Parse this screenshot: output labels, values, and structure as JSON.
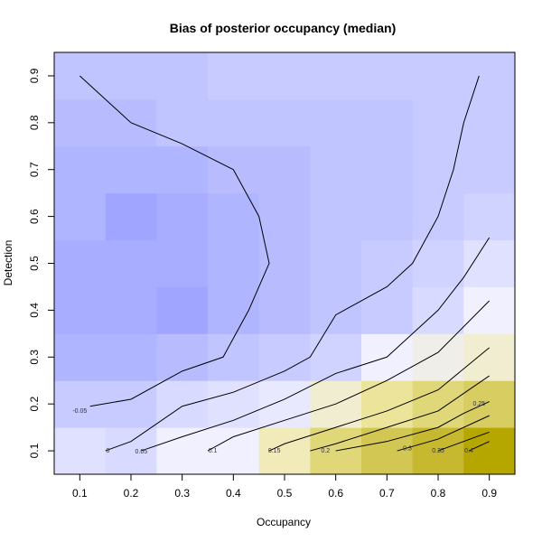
{
  "chart_data": {
    "type": "heatmap",
    "title": "Bias of posterior occupancy (median)",
    "xlabel": "Occupancy",
    "ylabel": "Detection",
    "x": [
      0.1,
      0.2,
      0.3,
      0.4,
      0.5,
      0.6,
      0.7,
      0.8,
      0.9
    ],
    "y": [
      0.1,
      0.2,
      0.3,
      0.4,
      0.5,
      0.6,
      0.7,
      0.8,
      0.9
    ],
    "xlim": [
      0.05,
      0.95
    ],
    "ylim": [
      0.05,
      0.95
    ],
    "xticks": [
      "0.1",
      "0.2",
      "0.3",
      "0.4",
      "0.5",
      "0.6",
      "0.7",
      "0.8",
      "0.9"
    ],
    "yticks": [
      "0.1",
      "0.2",
      "0.3",
      "0.4",
      "0.5",
      "0.6",
      "0.7",
      "0.8",
      "0.9"
    ],
    "z": [
      [
        -0.02,
        -0.03,
        0.0,
        0.0,
        0.12,
        0.25,
        0.33,
        0.4,
        0.52
      ],
      [
        -0.05,
        -0.05,
        -0.03,
        -0.02,
        -0.01,
        0.08,
        0.18,
        0.25,
        0.3
      ],
      [
        -0.08,
        -0.08,
        -0.07,
        -0.06,
        -0.05,
        -0.04,
        0.0,
        0.04,
        0.08
      ],
      [
        -0.09,
        -0.09,
        -0.1,
        -0.08,
        -0.07,
        -0.06,
        -0.05,
        -0.03,
        0.0
      ],
      [
        -0.09,
        -0.09,
        -0.09,
        -0.08,
        -0.07,
        -0.06,
        -0.05,
        -0.04,
        -0.02
      ],
      [
        -0.08,
        -0.1,
        -0.09,
        -0.08,
        -0.07,
        -0.06,
        -0.06,
        -0.05,
        -0.04
      ],
      [
        -0.08,
        -0.08,
        -0.08,
        -0.07,
        -0.07,
        -0.06,
        -0.06,
        -0.05,
        -0.05
      ],
      [
        -0.07,
        -0.07,
        -0.06,
        -0.06,
        -0.06,
        -0.06,
        -0.06,
        -0.05,
        -0.05
      ],
      [
        -0.06,
        -0.06,
        -0.06,
        -0.05,
        -0.05,
        -0.05,
        -0.05,
        -0.05,
        -0.05
      ]
    ],
    "color_low": "#a0a6ff",
    "color_mid": "#f0f0ff",
    "color_high_mid": "#f0eaa8",
    "color_high": "#b5a600",
    "contours": [
      {
        "label": "-0.05",
        "points": [
          [
            0.1,
            0.9
          ],
          [
            0.2,
            0.8
          ],
          [
            0.3,
            0.755
          ],
          [
            0.4,
            0.7
          ],
          [
            0.45,
            0.6
          ],
          [
            0.47,
            0.5
          ],
          [
            0.43,
            0.4
          ],
          [
            0.38,
            0.3
          ],
          [
            0.3,
            0.27
          ],
          [
            0.2,
            0.21
          ],
          [
            0.12,
            0.195
          ]
        ],
        "label_at": [
          0.1,
          0.185
        ]
      },
      {
        "label": "0",
        "points": [
          [
            0.15,
            0.1
          ],
          [
            0.2,
            0.12
          ],
          [
            0.3,
            0.195
          ],
          [
            0.4,
            0.225
          ],
          [
            0.5,
            0.27
          ],
          [
            0.55,
            0.3
          ],
          [
            0.6,
            0.39
          ],
          [
            0.7,
            0.45
          ],
          [
            0.75,
            0.5
          ],
          [
            0.8,
            0.6
          ],
          [
            0.83,
            0.7
          ],
          [
            0.85,
            0.8
          ],
          [
            0.88,
            0.9
          ]
        ],
        "label_at": [
          0.155,
          0.1
        ]
      },
      {
        "label": "0.05",
        "points": [
          [
            0.22,
            0.1
          ],
          [
            0.3,
            0.13
          ],
          [
            0.4,
            0.165
          ],
          [
            0.5,
            0.21
          ],
          [
            0.6,
            0.265
          ],
          [
            0.7,
            0.3
          ],
          [
            0.8,
            0.4
          ],
          [
            0.85,
            0.47
          ],
          [
            0.9,
            0.555
          ]
        ],
        "label_at": [
          0.22,
          0.098
        ]
      },
      {
        "label": "0.1",
        "points": [
          [
            0.35,
            0.1
          ],
          [
            0.4,
            0.13
          ],
          [
            0.5,
            0.165
          ],
          [
            0.6,
            0.2
          ],
          [
            0.7,
            0.25
          ],
          [
            0.8,
            0.31
          ],
          [
            0.9,
            0.42
          ]
        ],
        "label_at": [
          0.36,
          0.1
        ]
      },
      {
        "label": "0.15",
        "points": [
          [
            0.47,
            0.1
          ],
          [
            0.5,
            0.115
          ],
          [
            0.6,
            0.15
          ],
          [
            0.7,
            0.185
          ],
          [
            0.8,
            0.23
          ],
          [
            0.9,
            0.32
          ]
        ],
        "label_at": [
          0.48,
          0.1
        ]
      },
      {
        "label": "0.2",
        "points": [
          [
            0.55,
            0.1
          ],
          [
            0.6,
            0.115
          ],
          [
            0.7,
            0.15
          ],
          [
            0.8,
            0.185
          ],
          [
            0.9,
            0.26
          ]
        ],
        "label_at": [
          0.58,
          0.1
        ]
      },
      {
        "label": "0.25",
        "points": [
          [
            0.6,
            0.1
          ],
          [
            0.7,
            0.12
          ],
          [
            0.8,
            0.15
          ],
          [
            0.85,
            0.18
          ],
          [
            0.9,
            0.205
          ]
        ],
        "label_at": [
          0.88,
          0.2
        ]
      },
      {
        "label": "0.3",
        "points": [
          [
            0.72,
            0.1
          ],
          [
            0.8,
            0.125
          ],
          [
            0.9,
            0.175
          ]
        ],
        "label_at": [
          0.74,
          0.105
        ]
      },
      {
        "label": "0.35",
        "points": [
          [
            0.8,
            0.1
          ],
          [
            0.9,
            0.14
          ]
        ],
        "label_at": [
          0.8,
          0.1
        ]
      },
      {
        "label": "0.4",
        "points": [
          [
            0.86,
            0.1
          ],
          [
            0.9,
            0.12
          ]
        ],
        "label_at": [
          0.86,
          0.1
        ]
      }
    ]
  }
}
